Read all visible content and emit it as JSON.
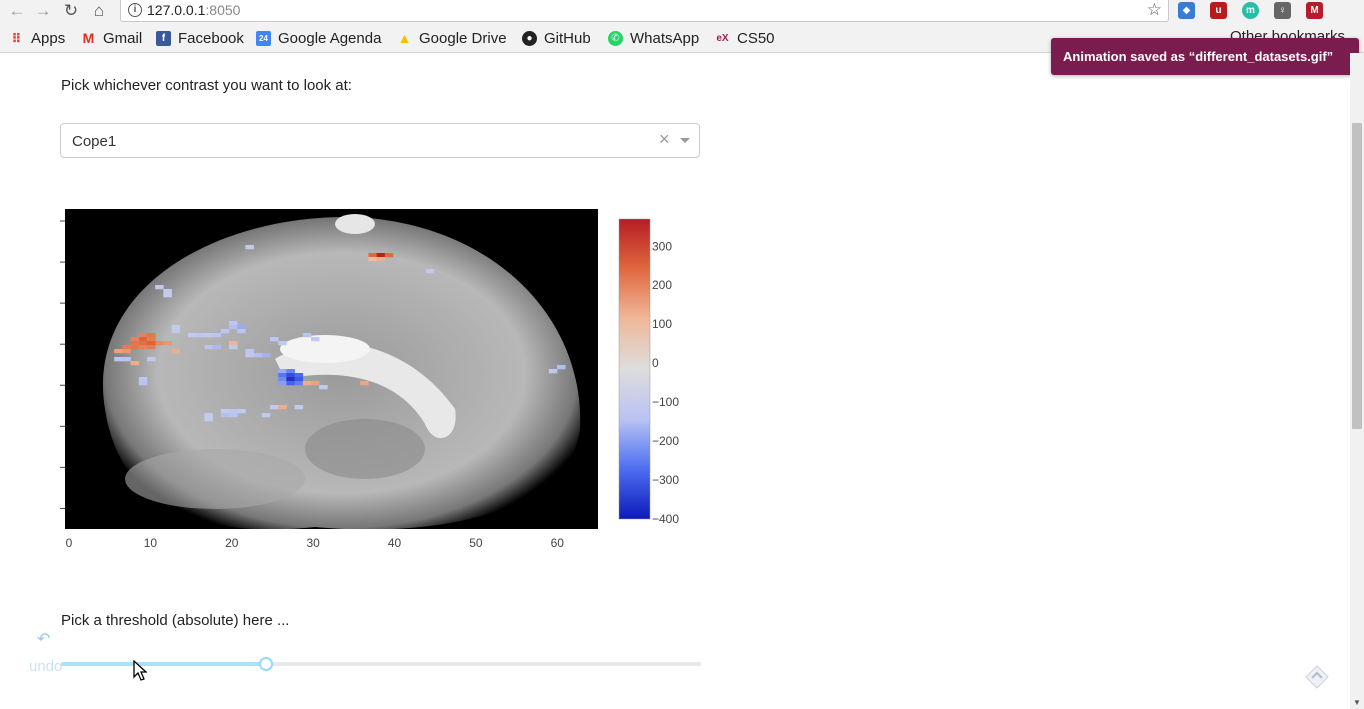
{
  "browser": {
    "url_host": "127.0.0.1",
    "url_port": ":8050",
    "bookmarks": [
      {
        "label": "Apps",
        "icon": "apps-grid-icon",
        "color": "#e8453c"
      },
      {
        "label": "Gmail",
        "icon": "gmail-icon",
        "color": "#d93025"
      },
      {
        "label": "Facebook",
        "icon": "facebook-icon",
        "color": "#3b5998"
      },
      {
        "label": "Google Agenda",
        "icon": "calendar-icon",
        "color": "#4285f4"
      },
      {
        "label": "Google Drive",
        "icon": "drive-icon",
        "color": "#fbbc04"
      },
      {
        "label": "GitHub",
        "icon": "github-icon",
        "color": "#222222"
      },
      {
        "label": "WhatsApp",
        "icon": "whatsapp-icon",
        "color": "#25d366"
      },
      {
        "label": "CS50",
        "icon": "edx-icon",
        "color": "#a61d55"
      }
    ],
    "other_bookmarks": "Other bookmarks",
    "extension_icons": [
      "bookmark-ext-icon",
      "ublock-icon",
      "m-ext-icon",
      "lightbulb-ext-icon",
      "mendeley-icon"
    ]
  },
  "toast": {
    "text": "Animation saved as “different_datasets.gif”",
    "color": "#7a1c4d"
  },
  "main": {
    "contrast_label": "Pick whichever contrast you want to look at:",
    "dropdown": {
      "selected": "Cope1",
      "clear": "×"
    },
    "threshold_label": "Pick a threshold (absolute) here ...",
    "slider": {
      "value_fraction": 0.32
    },
    "undo_label": "undo"
  },
  "chart_data": {
    "type": "heatmap",
    "title": "",
    "xlabel": "",
    "ylabel": "",
    "xlim": [
      0,
      64
    ],
    "xticks": [
      0,
      10,
      20,
      30,
      40,
      50,
      60
    ],
    "ytick_count": 8,
    "grid": false,
    "colorbar": {
      "ticks": [
        300,
        200,
        100,
        0,
        -100,
        -200,
        -300,
        -400
      ],
      "range": [
        -400,
        370
      ],
      "colorscale": [
        "#0d1ab8",
        "#4d6ef2",
        "#b9c3f2",
        "#dddddd",
        "#f0b89a",
        "#e0683f",
        "#b51c24"
      ]
    },
    "background": "grayscale brain sagittal slice",
    "overlay_points": [
      {
        "x": 37,
        "y": 68,
        "value": 240
      },
      {
        "x": 38,
        "y": 68,
        "value": 360
      },
      {
        "x": 39,
        "y": 68,
        "value": 240
      },
      {
        "x": 38,
        "y": 67,
        "value": 130
      },
      {
        "x": 37,
        "y": 67,
        "value": 110
      },
      {
        "x": 22,
        "y": 70,
        "value": -110
      },
      {
        "x": 44,
        "y": 64,
        "value": -120
      },
      {
        "x": 11,
        "y": 60,
        "value": -120
      },
      {
        "x": 12,
        "y": 59,
        "value": -110
      },
      {
        "x": 12,
        "y": 58,
        "value": -100
      },
      {
        "x": 20,
        "y": 51,
        "value": -130
      },
      {
        "x": 20,
        "y": 50,
        "value": -150
      },
      {
        "x": 21,
        "y": 50,
        "value": -180
      },
      {
        "x": 19,
        "y": 49,
        "value": -130
      },
      {
        "x": 21,
        "y": 49,
        "value": -140
      },
      {
        "x": 13,
        "y": 50,
        "value": -110
      },
      {
        "x": 13,
        "y": 49,
        "value": -120
      },
      {
        "x": 15,
        "y": 48,
        "value": -110
      },
      {
        "x": 16,
        "y": 48,
        "value": -130
      },
      {
        "x": 17,
        "y": 48,
        "value": -120
      },
      {
        "x": 18,
        "y": 48,
        "value": -140
      },
      {
        "x": 9,
        "y": 48,
        "value": 200
      },
      {
        "x": 10,
        "y": 48,
        "value": 220
      },
      {
        "x": 9,
        "y": 47,
        "value": 250
      },
      {
        "x": 10,
        "y": 47,
        "value": 210
      },
      {
        "x": 8,
        "y": 47,
        "value": 200
      },
      {
        "x": 11,
        "y": 46,
        "value": 190
      },
      {
        "x": 8,
        "y": 46,
        "value": 220
      },
      {
        "x": 9,
        "y": 46,
        "value": 230
      },
      {
        "x": 10,
        "y": 46,
        "value": 250
      },
      {
        "x": 12,
        "y": 46,
        "value": 170
      },
      {
        "x": 7,
        "y": 45,
        "value": 210
      },
      {
        "x": 8,
        "y": 45,
        "value": 220
      },
      {
        "x": 9,
        "y": 45,
        "value": 200
      },
      {
        "x": 10,
        "y": 45,
        "value": 210
      },
      {
        "x": 6,
        "y": 44,
        "value": 150
      },
      {
        "x": 7,
        "y": 44,
        "value": 170
      },
      {
        "x": 13,
        "y": 44,
        "value": 130
      },
      {
        "x": 20,
        "y": 46,
        "value": 120
      },
      {
        "x": 17,
        "y": 45,
        "value": -140
      },
      {
        "x": 18,
        "y": 45,
        "value": -160
      },
      {
        "x": 20,
        "y": 45,
        "value": -120
      },
      {
        "x": 22,
        "y": 44,
        "value": -130
      },
      {
        "x": 23,
        "y": 43,
        "value": -150
      },
      {
        "x": 24,
        "y": 43,
        "value": -170
      },
      {
        "x": 22,
        "y": 43,
        "value": -120
      },
      {
        "x": 25,
        "y": 47,
        "value": -130
      },
      {
        "x": 26,
        "y": 46,
        "value": -110
      },
      {
        "x": 29,
        "y": 48,
        "value": -140
      },
      {
        "x": 30,
        "y": 47,
        "value": -110
      },
      {
        "x": 6,
        "y": 42,
        "value": -130
      },
      {
        "x": 7,
        "y": 42,
        "value": -140
      },
      {
        "x": 10,
        "y": 42,
        "value": -120
      },
      {
        "x": 8,
        "y": 41,
        "value": 130
      },
      {
        "x": 26,
        "y": 39,
        "value": -180
      },
      {
        "x": 27,
        "y": 39,
        "value": -240
      },
      {
        "x": 26,
        "y": 38,
        "value": -260
      },
      {
        "x": 27,
        "y": 38,
        "value": -320
      },
      {
        "x": 28,
        "y": 38,
        "value": -280
      },
      {
        "x": 26,
        "y": 37,
        "value": -230
      },
      {
        "x": 27,
        "y": 37,
        "value": -360
      },
      {
        "x": 28,
        "y": 37,
        "value": -300
      },
      {
        "x": 26,
        "y": 36,
        "value": -200
      },
      {
        "x": 27,
        "y": 36,
        "value": -290
      },
      {
        "x": 28,
        "y": 36,
        "value": -250
      },
      {
        "x": 29,
        "y": 36,
        "value": 130
      },
      {
        "x": 30,
        "y": 36,
        "value": 150
      },
      {
        "x": 31,
        "y": 35,
        "value": -110
      },
      {
        "x": 36,
        "y": 36,
        "value": 140
      },
      {
        "x": 9,
        "y": 37,
        "value": -130
      },
      {
        "x": 9,
        "y": 36,
        "value": -140
      },
      {
        "x": 60,
        "y": 40,
        "value": -150
      },
      {
        "x": 59,
        "y": 39,
        "value": -120
      },
      {
        "x": 25,
        "y": 30,
        "value": -120
      },
      {
        "x": 26,
        "y": 30,
        "value": 130
      },
      {
        "x": 28,
        "y": 30,
        "value": -110
      },
      {
        "x": 19,
        "y": 29,
        "value": -110
      },
      {
        "x": 20,
        "y": 29,
        "value": -130
      },
      {
        "x": 21,
        "y": 29,
        "value": -120
      },
      {
        "x": 19,
        "y": 28,
        "value": -150
      },
      {
        "x": 20,
        "y": 28,
        "value": -140
      },
      {
        "x": 17,
        "y": 28,
        "value": -110
      },
      {
        "x": 24,
        "y": 28,
        "value": -120
      },
      {
        "x": 17,
        "y": 27,
        "value": -100
      }
    ]
  }
}
